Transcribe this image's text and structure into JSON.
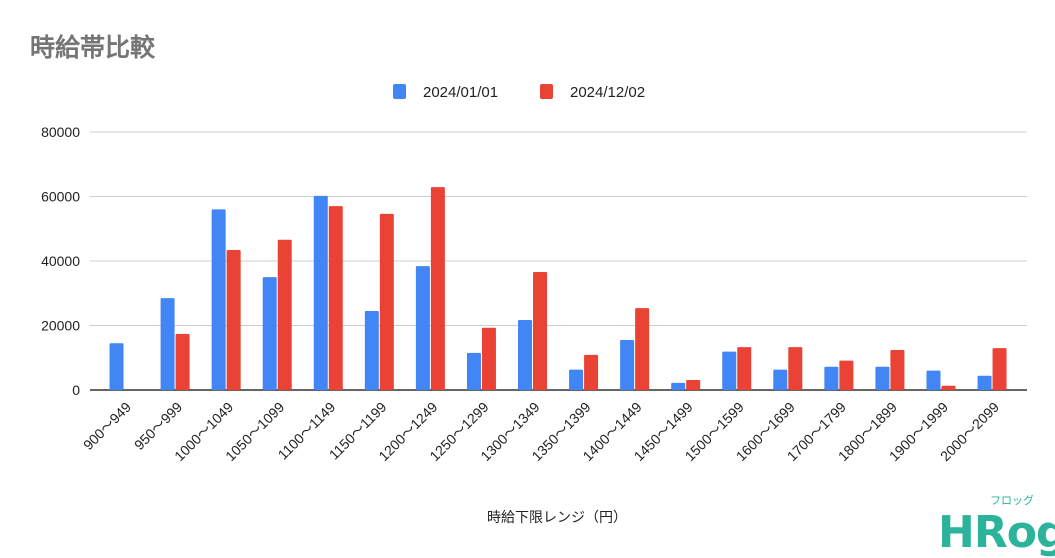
{
  "chart_data": {
    "type": "bar",
    "title": "時給帯比較",
    "xlabel": "時給下限レンジ（円）",
    "ylabel": "",
    "ylim": [
      0,
      80000
    ],
    "yticks": [
      "0",
      "20000",
      "40000",
      "60000",
      "80000"
    ],
    "grid": true,
    "legend_position": "top",
    "categories": [
      "900～949",
      "950～999",
      "1000～1049",
      "1050～1099",
      "1100～1149",
      "1150～1199",
      "1200～1249",
      "1250～1299",
      "1300～1349",
      "1350～1399",
      "1400～1449",
      "1450～1499",
      "1500～1599",
      "1600～1699",
      "1700～1799",
      "1800～1899",
      "1900～1999",
      "2000～2099"
    ],
    "series": [
      {
        "name": "2024/01/01",
        "color": "#4285f4",
        "values": [
          14500,
          28500,
          56000,
          35000,
          60200,
          24500,
          38400,
          11500,
          21700,
          6300,
          15500,
          2200,
          11900,
          6300,
          7200,
          7200,
          6000,
          4400
        ]
      },
      {
        "name": "2024/12/02",
        "color": "#ea4335",
        "values": [
          0,
          17400,
          43400,
          46600,
          57000,
          54600,
          62900,
          19300,
          36600,
          10900,
          25400,
          3100,
          13300,
          13300,
          9100,
          12400,
          1300,
          13000
        ]
      }
    ]
  },
  "logo": {
    "text": "HRog",
    "kana": "フロッグ"
  }
}
